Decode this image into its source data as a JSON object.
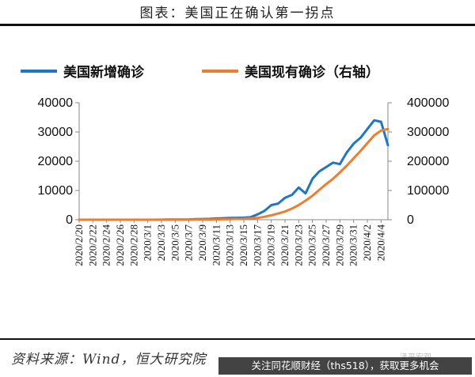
{
  "header": {
    "title": "图表：美国正在确认第一拐点"
  },
  "footer": {
    "source": "资料来源：Wind，恒大研究院",
    "watermark": "泽平宏观",
    "banner": "关注同花顺财经（ths518），获取更多机会"
  },
  "colors": {
    "new_cases": "#1f77c4",
    "active_cases": "#ed7d31",
    "axis": "#888888"
  },
  "chart_data": {
    "type": "line",
    "title": "",
    "legend_position": "top",
    "x": [
      "2020/2/20",
      "2020/2/21",
      "2020/2/22",
      "2020/2/23",
      "2020/2/24",
      "2020/2/25",
      "2020/2/26",
      "2020/2/27",
      "2020/2/28",
      "2020/2/29",
      "2020/3/1",
      "2020/3/2",
      "2020/3/3",
      "2020/3/4",
      "2020/3/5",
      "2020/3/6",
      "2020/3/7",
      "2020/3/8",
      "2020/3/9",
      "2020/3/10",
      "2020/3/11",
      "2020/3/12",
      "2020/3/13",
      "2020/3/14",
      "2020/3/15",
      "2020/3/16",
      "2020/3/17",
      "2020/3/18",
      "2020/3/19",
      "2020/3/20",
      "2020/3/21",
      "2020/3/22",
      "2020/3/23",
      "2020/3/24",
      "2020/3/25",
      "2020/3/26",
      "2020/3/27",
      "2020/3/28",
      "2020/3/29",
      "2020/3/30",
      "2020/3/31",
      "2020/4/1",
      "2020/4/2",
      "2020/4/3",
      "2020/4/4",
      "2020/4/5"
    ],
    "x_tick_labels": [
      "2020/2/20",
      "2020/2/22",
      "2020/2/24",
      "2020/2/26",
      "2020/2/28",
      "2020/3/1",
      "2020/3/3",
      "2020/3/5",
      "2020/3/7",
      "2020/3/9",
      "2020/3/11",
      "2020/3/13",
      "2020/3/15",
      "2020/3/17",
      "2020/3/19",
      "2020/3/21",
      "2020/3/23",
      "2020/3/25",
      "2020/3/27",
      "2020/3/29",
      "2020/3/31",
      "2020/4/2",
      "2020/4/4"
    ],
    "y_left": {
      "ylim": [
        0,
        40000
      ],
      "ticks": [
        "0",
        "10000",
        "20000",
        "30000",
        "40000"
      ]
    },
    "y_right": {
      "ylim": [
        0,
        400000
      ],
      "ticks": [
        "0",
        "100000",
        "200000",
        "300000",
        "400000"
      ]
    },
    "series": [
      {
        "name": "美国新增确诊",
        "axis": "left",
        "values": [
          0,
          0,
          0,
          0,
          0,
          0,
          0,
          0,
          0,
          0,
          0,
          10,
          30,
          50,
          70,
          90,
          120,
          180,
          250,
          300,
          400,
          500,
          600,
          650,
          700,
          900,
          1800,
          3000,
          5000,
          5500,
          7500,
          8500,
          11000,
          9000,
          14000,
          16500,
          18000,
          19500,
          19000,
          23000,
          26000,
          28000,
          31000,
          34000,
          33500,
          25500
        ]
      },
      {
        "name": "美国现有确诊（右轴）",
        "axis": "right",
        "values": [
          0,
          0,
          0,
          0,
          0,
          0,
          0,
          0,
          0,
          0,
          50,
          80,
          100,
          150,
          200,
          250,
          350,
          450,
          600,
          800,
          1100,
          1600,
          2100,
          2900,
          3500,
          4500,
          6000,
          10000,
          15000,
          21000,
          28000,
          38000,
          50000,
          65000,
          82000,
          102000,
          122000,
          140000,
          162000,
          185000,
          210000,
          235000,
          262000,
          288000,
          305000,
          310000
        ]
      }
    ]
  }
}
